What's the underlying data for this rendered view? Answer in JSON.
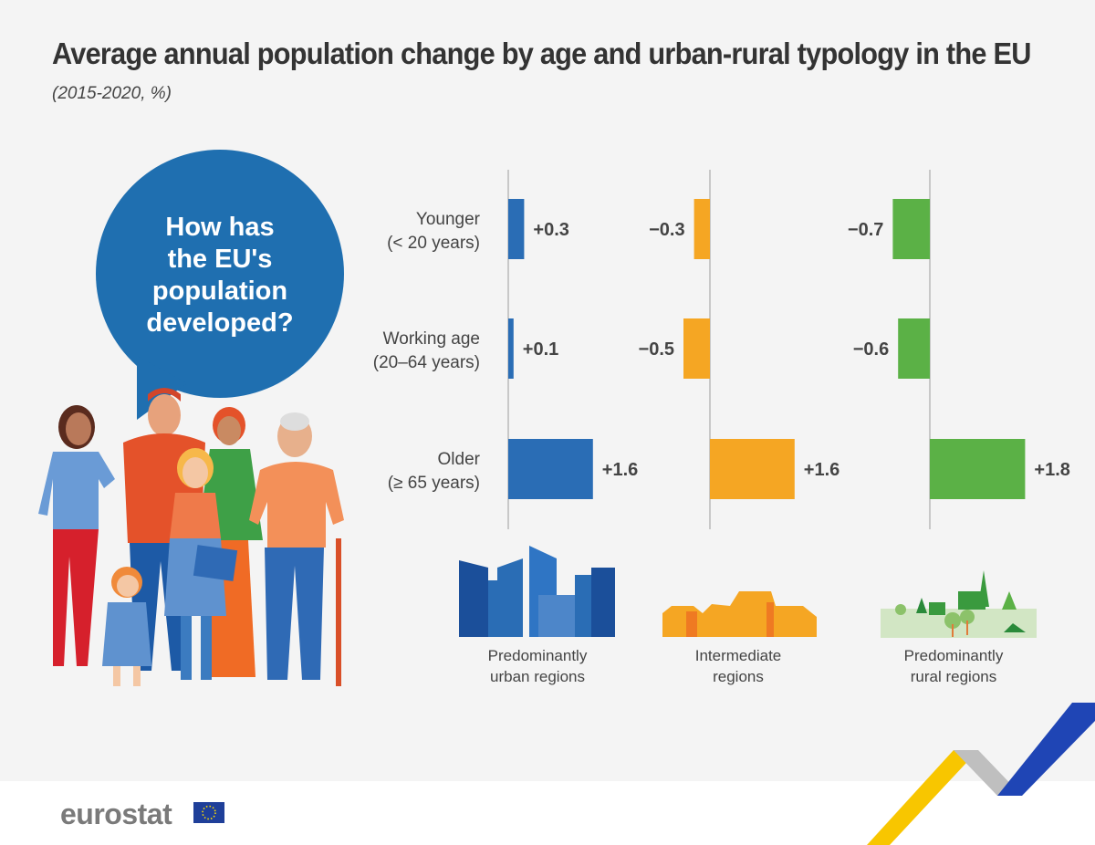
{
  "title": "Average annual population change by age and urban-rural typology in the EU",
  "subtitle": "(2015-2020, %)",
  "bubble_text": [
    "How has",
    "the EU's",
    "population",
    "developed?"
  ],
  "logo": "eurostat",
  "chart_data": {
    "type": "bar",
    "orientation": "horizontal",
    "title": "Average annual population change by age and urban-rural typology in the EU",
    "subtitle": "(2015-2020, %)",
    "categories": [
      [
        "Younger",
        "(< 20 years)"
      ],
      [
        "Working age",
        "(20–64 years)"
      ],
      [
        "Older",
        "(≥ 65 years)"
      ]
    ],
    "series": [
      {
        "name": "Predominantly urban regions",
        "name_lines": [
          "Predominantly",
          "urban regions"
        ],
        "values": [
          0.3,
          0.1,
          1.6
        ],
        "labels": [
          "+0.3",
          "+0.1",
          "+1.6"
        ],
        "color": "#2a6db5"
      },
      {
        "name": "Intermediate regions",
        "name_lines": [
          "Intermediate",
          "regions"
        ],
        "values": [
          -0.3,
          -0.5,
          1.6
        ],
        "labels": [
          "−0.3",
          "−0.5",
          "+1.6"
        ],
        "color": "#f5a623"
      },
      {
        "name": "Predominantly rural regions",
        "name_lines": [
          "Predominantly",
          "rural regions"
        ],
        "values": [
          -0.7,
          -0.6,
          1.8
        ],
        "labels": [
          "−0.7",
          "−0.6",
          "+1.8"
        ],
        "color": "#5bb146"
      }
    ],
    "grid": false
  }
}
